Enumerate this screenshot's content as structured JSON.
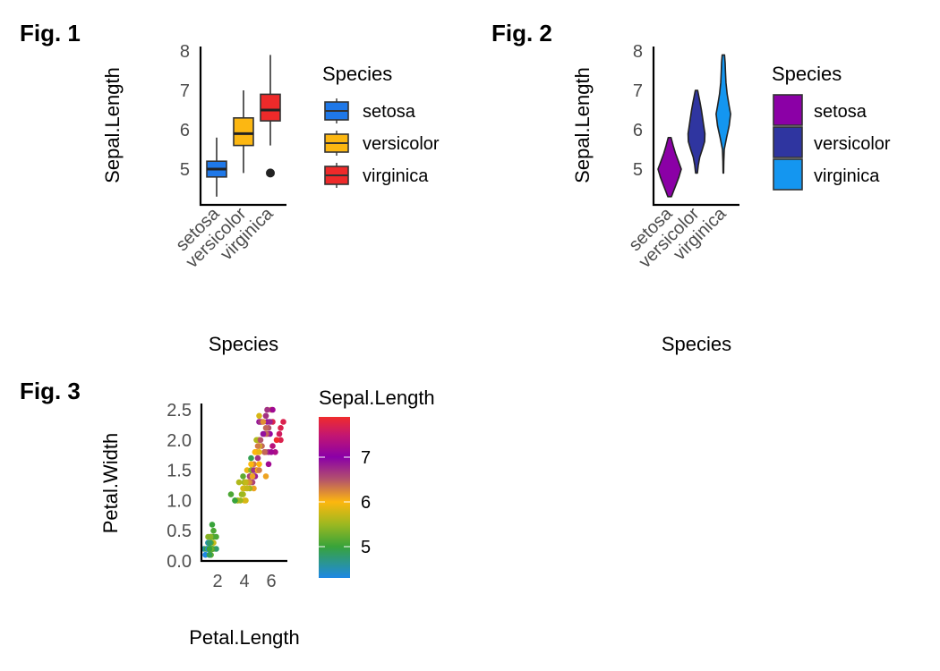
{
  "figures": {
    "fig1": {
      "label": "Fig.  1"
    },
    "fig2": {
      "label": "Fig.  2"
    },
    "fig3": {
      "label": "Fig.  3"
    }
  },
  "chart_data": [
    {
      "id": "fig1",
      "type": "box",
      "title": "",
      "xlabel": "Species",
      "ylabel": "Sepal.Length",
      "categories": [
        "setosa",
        "versicolor",
        "virginica"
      ],
      "yticks": [
        5,
        6,
        7,
        8
      ],
      "ylim": [
        4.1,
        8.1
      ],
      "grid": false,
      "boxes": [
        {
          "name": "setosa",
          "min": 4.3,
          "q1": 4.8,
          "median": 5.0,
          "q3": 5.2,
          "max": 5.8,
          "outliers": [],
          "color": "#1F78E8"
        },
        {
          "name": "versicolor",
          "min": 4.9,
          "q1": 5.6,
          "median": 5.9,
          "q3": 6.3,
          "max": 7.0,
          "outliers": [],
          "color": "#FCB712"
        },
        {
          "name": "virginica",
          "min": 5.6,
          "q1": 6.225,
          "median": 6.5,
          "q3": 6.9,
          "max": 7.9,
          "outliers": [
            4.9
          ],
          "color": "#EE2A2A"
        }
      ],
      "legend": {
        "title": "Species",
        "position": "right",
        "entries": [
          "setosa",
          "versicolor",
          "virginica"
        ]
      }
    },
    {
      "id": "fig2",
      "type": "violin",
      "title": "",
      "xlabel": "Species",
      "ylabel": "Sepal.Length",
      "categories": [
        "setosa",
        "versicolor",
        "virginica"
      ],
      "yticks": [
        5,
        6,
        7,
        8
      ],
      "ylim": [
        4.1,
        8.1
      ],
      "grid": false,
      "violins": [
        {
          "name": "setosa",
          "min": 4.3,
          "max": 5.8,
          "density": [
            [
              4.3,
              0.15
            ],
            [
              4.45,
              0.35
            ],
            [
              4.6,
              0.55
            ],
            [
              4.8,
              0.8
            ],
            [
              5.0,
              1.0
            ],
            [
              5.2,
              0.75
            ],
            [
              5.4,
              0.5
            ],
            [
              5.6,
              0.3
            ],
            [
              5.8,
              0.12
            ]
          ],
          "color": "#8B00A6"
        },
        {
          "name": "versicolor",
          "min": 4.9,
          "max": 7.0,
          "density": [
            [
              4.9,
              0.08
            ],
            [
              5.1,
              0.15
            ],
            [
              5.3,
              0.28
            ],
            [
              5.5,
              0.5
            ],
            [
              5.7,
              0.7
            ],
            [
              5.9,
              0.72
            ],
            [
              6.1,
              0.62
            ],
            [
              6.3,
              0.52
            ],
            [
              6.5,
              0.42
            ],
            [
              6.7,
              0.3
            ],
            [
              6.85,
              0.2
            ],
            [
              7.0,
              0.1
            ]
          ],
          "color": "#2F35A0"
        },
        {
          "name": "virginica",
          "min": 4.9,
          "max": 7.9,
          "density": [
            [
              4.9,
              0.02
            ],
            [
              5.2,
              0.04
            ],
            [
              5.5,
              0.08
            ],
            [
              5.8,
              0.28
            ],
            [
              6.1,
              0.5
            ],
            [
              6.4,
              0.62
            ],
            [
              6.6,
              0.5
            ],
            [
              6.9,
              0.33
            ],
            [
              7.2,
              0.22
            ],
            [
              7.5,
              0.18
            ],
            [
              7.7,
              0.15
            ],
            [
              7.9,
              0.1
            ]
          ],
          "color": "#1496F0"
        }
      ],
      "legend": {
        "title": "Species",
        "position": "right",
        "entries": [
          "setosa",
          "versicolor",
          "virginica"
        ]
      }
    },
    {
      "id": "fig3",
      "type": "scatter",
      "title": "",
      "xlabel": "Petal.Length",
      "ylabel": "Petal.Width",
      "xticks": [
        2,
        4,
        6
      ],
      "yticks": [
        0.0,
        0.5,
        1.0,
        1.5,
        2.0,
        2.5
      ],
      "ytick_labels": [
        "0.0",
        "0.5",
        "1.0",
        "1.5",
        "2.0",
        "2.5"
      ],
      "xlim": [
        0.8,
        7.1
      ],
      "ylim": [
        0.0,
        2.55
      ],
      "grid": false,
      "color_variable": "Sepal.Length",
      "colorbar": {
        "title": "Sepal.Length",
        "position": "right",
        "range": [
          4.3,
          7.9
        ],
        "ticks": [
          5,
          6,
          7
        ],
        "stops": [
          {
            "value": 4.3,
            "color": "#1E88E5"
          },
          {
            "value": 5.0,
            "color": "#38A33A"
          },
          {
            "value": 5.5,
            "color": "#9CB820"
          },
          {
            "value": 6.0,
            "color": "#FDB70E"
          },
          {
            "value": 6.5,
            "color": "#B4536B"
          },
          {
            "value": 7.0,
            "color": "#8A00A8"
          },
          {
            "value": 7.5,
            "color": "#C41770"
          },
          {
            "value": 7.9,
            "color": "#EF2C2C"
          }
        ]
      },
      "points": [
        [
          1.4,
          0.2,
          5.1
        ],
        [
          1.4,
          0.2,
          4.9
        ],
        [
          1.3,
          0.2,
          4.7
        ],
        [
          1.5,
          0.2,
          4.6
        ],
        [
          1.4,
          0.2,
          5.0
        ],
        [
          1.7,
          0.4,
          5.4
        ],
        [
          1.4,
          0.3,
          4.6
        ],
        [
          1.5,
          0.2,
          5.0
        ],
        [
          1.4,
          0.2,
          4.4
        ],
        [
          1.5,
          0.1,
          4.9
        ],
        [
          1.5,
          0.2,
          5.4
        ],
        [
          1.6,
          0.2,
          4.8
        ],
        [
          1.4,
          0.1,
          4.8
        ],
        [
          1.1,
          0.1,
          4.3
        ],
        [
          1.2,
          0.2,
          5.8
        ],
        [
          1.5,
          0.4,
          5.7
        ],
        [
          1.3,
          0.4,
          5.4
        ],
        [
          1.4,
          0.3,
          5.1
        ],
        [
          1.7,
          0.3,
          5.7
        ],
        [
          1.5,
          0.3,
          5.1
        ],
        [
          1.7,
          0.2,
          5.4
        ],
        [
          1.5,
          0.4,
          5.1
        ],
        [
          1.0,
          0.2,
          4.6
        ],
        [
          1.7,
          0.5,
          5.1
        ],
        [
          1.9,
          0.2,
          4.8
        ],
        [
          1.6,
          0.2,
          5.0
        ],
        [
          1.6,
          0.4,
          5.0
        ],
        [
          1.5,
          0.2,
          5.2
        ],
        [
          1.4,
          0.2,
          5.2
        ],
        [
          1.6,
          0.2,
          4.7
        ],
        [
          1.6,
          0.2,
          4.8
        ],
        [
          1.5,
          0.4,
          5.4
        ],
        [
          1.5,
          0.1,
          5.2
        ],
        [
          1.4,
          0.2,
          5.5
        ],
        [
          1.5,
          0.2,
          4.9
        ],
        [
          1.2,
          0.2,
          5.0
        ],
        [
          1.3,
          0.2,
          5.5
        ],
        [
          1.4,
          0.1,
          4.9
        ],
        [
          1.3,
          0.2,
          4.4
        ],
        [
          1.5,
          0.2,
          5.1
        ],
        [
          1.3,
          0.3,
          5.0
        ],
        [
          1.3,
          0.3,
          4.5
        ],
        [
          1.3,
          0.2,
          4.4
        ],
        [
          1.6,
          0.6,
          5.0
        ],
        [
          1.9,
          0.4,
          5.1
        ],
        [
          1.4,
          0.3,
          4.8
        ],
        [
          1.6,
          0.2,
          5.1
        ],
        [
          1.4,
          0.2,
          4.6
        ],
        [
          1.5,
          0.2,
          5.3
        ],
        [
          1.4,
          0.2,
          5.0
        ],
        [
          4.7,
          1.4,
          7.0
        ],
        [
          4.5,
          1.5,
          6.4
        ],
        [
          4.9,
          1.5,
          6.9
        ],
        [
          4.0,
          1.3,
          5.5
        ],
        [
          4.6,
          1.5,
          6.5
        ],
        [
          4.5,
          1.3,
          5.7
        ],
        [
          4.7,
          1.6,
          6.3
        ],
        [
          3.3,
          1.0,
          4.9
        ],
        [
          4.6,
          1.3,
          6.6
        ],
        [
          3.9,
          1.4,
          5.2
        ],
        [
          3.5,
          1.0,
          5.0
        ],
        [
          4.2,
          1.5,
          5.9
        ],
        [
          4.0,
          1.0,
          6.0
        ],
        [
          4.7,
          1.4,
          6.1
        ],
        [
          3.6,
          1.3,
          5.6
        ],
        [
          4.4,
          1.4,
          6.7
        ],
        [
          4.5,
          1.5,
          5.6
        ],
        [
          4.1,
          1.0,
          5.8
        ],
        [
          4.5,
          1.5,
          6.2
        ],
        [
          3.9,
          1.1,
          5.6
        ],
        [
          4.8,
          1.8,
          5.9
        ],
        [
          4.0,
          1.3,
          6.1
        ],
        [
          4.9,
          1.5,
          6.3
        ],
        [
          4.7,
          1.2,
          6.1
        ],
        [
          4.3,
          1.3,
          6.4
        ],
        [
          4.4,
          1.4,
          6.6
        ],
        [
          4.8,
          1.4,
          6.8
        ],
        [
          5.0,
          1.7,
          6.7
        ],
        [
          4.5,
          1.5,
          6.0
        ],
        [
          3.5,
          1.0,
          5.7
        ],
        [
          3.8,
          1.1,
          5.5
        ],
        [
          3.7,
          1.0,
          5.5
        ],
        [
          3.9,
          1.2,
          5.8
        ],
        [
          5.1,
          1.6,
          6.0
        ],
        [
          4.5,
          1.5,
          5.4
        ],
        [
          4.5,
          1.6,
          6.0
        ],
        [
          4.7,
          1.5,
          6.7
        ],
        [
          4.4,
          1.3,
          6.3
        ],
        [
          4.1,
          1.3,
          5.6
        ],
        [
          4.0,
          1.3,
          5.5
        ],
        [
          4.4,
          1.2,
          5.5
        ],
        [
          4.6,
          1.4,
          6.1
        ],
        [
          4.0,
          1.2,
          5.8
        ],
        [
          3.3,
          1.0,
          5.0
        ],
        [
          4.2,
          1.3,
          5.6
        ],
        [
          4.2,
          1.2,
          5.7
        ],
        [
          4.2,
          1.3,
          5.7
        ],
        [
          4.3,
          1.3,
          6.2
        ],
        [
          3.0,
          1.1,
          5.1
        ],
        [
          4.1,
          1.3,
          5.7
        ],
        [
          6.0,
          2.5,
          6.3
        ],
        [
          5.1,
          1.9,
          5.8
        ],
        [
          5.9,
          2.1,
          7.1
        ],
        [
          5.6,
          1.8,
          6.3
        ],
        [
          5.8,
          2.2,
          6.5
        ],
        [
          6.6,
          2.1,
          7.6
        ],
        [
          4.5,
          1.7,
          4.9
        ],
        [
          6.3,
          1.8,
          7.3
        ],
        [
          5.8,
          1.8,
          6.7
        ],
        [
          6.1,
          2.5,
          7.2
        ],
        [
          5.1,
          2.0,
          6.5
        ],
        [
          5.3,
          1.9,
          6.4
        ],
        [
          5.5,
          2.1,
          6.8
        ],
        [
          5.0,
          2.0,
          5.7
        ],
        [
          5.1,
          2.4,
          5.8
        ],
        [
          5.3,
          2.3,
          6.4
        ],
        [
          5.5,
          1.8,
          6.5
        ],
        [
          6.7,
          2.2,
          7.7
        ],
        [
          6.9,
          2.3,
          7.7
        ],
        [
          5.0,
          1.5,
          6.0
        ],
        [
          5.7,
          2.3,
          6.9
        ],
        [
          4.9,
          2.0,
          5.6
        ],
        [
          6.7,
          2.0,
          7.7
        ],
        [
          4.9,
          1.8,
          6.3
        ],
        [
          5.7,
          2.1,
          6.7
        ],
        [
          6.0,
          1.8,
          7.2
        ],
        [
          4.8,
          1.8,
          6.2
        ],
        [
          4.9,
          1.8,
          6.1
        ],
        [
          5.6,
          2.1,
          6.4
        ],
        [
          5.8,
          1.6,
          7.2
        ],
        [
          6.1,
          1.9,
          7.4
        ],
        [
          6.4,
          2.0,
          7.9
        ],
        [
          5.6,
          2.2,
          6.4
        ],
        [
          5.1,
          1.5,
          6.3
        ],
        [
          5.6,
          1.4,
          6.1
        ],
        [
          6.1,
          2.3,
          7.7
        ],
        [
          5.6,
          2.4,
          6.3
        ],
        [
          5.5,
          1.8,
          6.4
        ],
        [
          4.8,
          1.8,
          6.0
        ],
        [
          5.4,
          2.1,
          6.9
        ],
        [
          5.6,
          2.4,
          6.7
        ],
        [
          5.1,
          2.3,
          6.9
        ],
        [
          5.1,
          1.9,
          5.8
        ],
        [
          5.9,
          2.3,
          6.8
        ],
        [
          5.7,
          2.5,
          6.7
        ],
        [
          5.2,
          2.3,
          6.7
        ],
        [
          5.0,
          1.9,
          6.3
        ],
        [
          5.2,
          2.0,
          6.5
        ],
        [
          5.4,
          2.3,
          6.2
        ],
        [
          5.1,
          1.8,
          5.9
        ]
      ]
    }
  ]
}
